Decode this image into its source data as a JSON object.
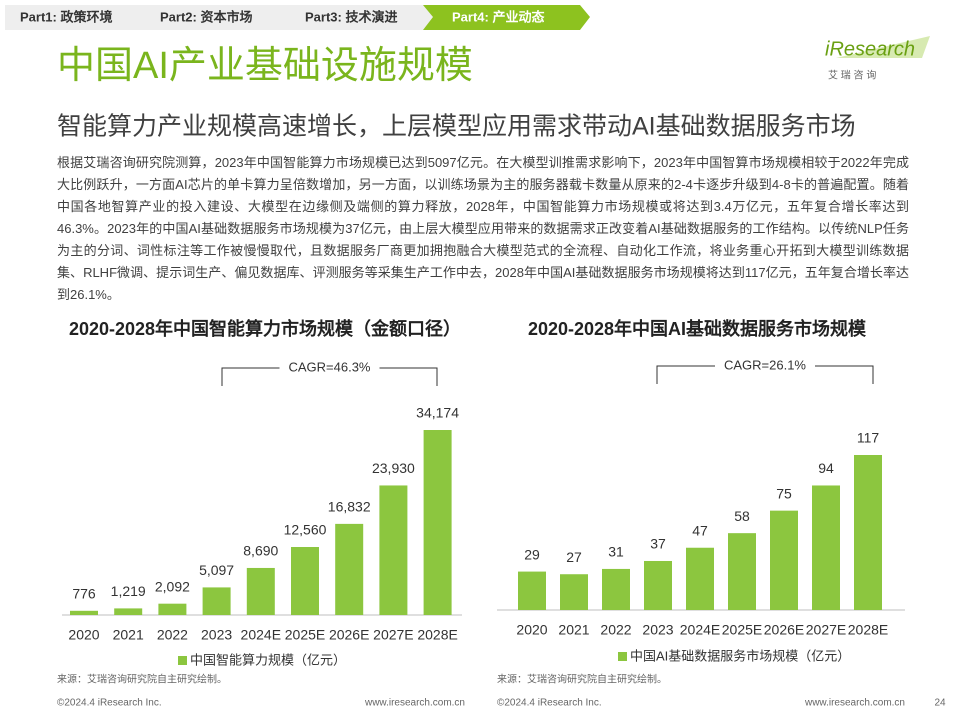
{
  "tabs": [
    "Part1: 政策环境",
    "Part2: 资本市场",
    "Part3: 技术演进",
    "Part4: 产业动态"
  ],
  "logo": {
    "name": "iResearch",
    "sub": "艾 瑞 咨 询"
  },
  "title": "中国AI产业基础设施规模",
  "subtitle": "智能算力产业规模高速增长，上层模型应用需求带动AI基础数据服务市场",
  "paragraph": "根据艾瑞咨询研究院测算，2023年中国智能算力市场规模已达到5097亿元。在大模型训推需求影响下，2023年中国智算市场规模相较于2022年完成大比例跃升，一方面AI芯片的单卡算力呈倍数增加，另一方面，以训练场景为主的服务器载卡数量从原来的2-4卡逐步升级到4-8卡的普遍配置。随着中国各地智算产业的投入建设、大模型在边缘侧及端侧的算力释放，2028年，中国智能算力市场规模或将达到3.4万亿元，五年复合增长率达到46.3%。2023年的中国AI基础数据服务市场规模为37亿元，由上层大模型应用带来的数据需求正改变着AI基础数据服务的工作结构。以传统NLP任务为主的分词、词性标注等工作被慢慢取代，且数据服务厂商更加拥抱融合大模型范式的全流程、自动化工作流，将业务重心开拓到大模型训练数据集、RLHF微调、提示词生产、偏见数据库、评测服务等采集生产工作中去，2028年中国AI基础数据服务市场规模将达到117亿元，五年复合增长率达到26.1%。",
  "page_number": 24,
  "chart_data": [
    {
      "type": "bar",
      "title": "2020-2028年中国智能算力市场规模（金额口径）",
      "categories": [
        "2020",
        "2021",
        "2022",
        "2023",
        "2024E",
        "2025E",
        "2026E",
        "2027E",
        "2028E"
      ],
      "series": [
        {
          "name": "中国智能算力规模（亿元）",
          "color": "#8cc63f",
          "values": [
            776,
            1219,
            2092,
            5097,
            8690,
            12560,
            16832,
            23930,
            34174
          ],
          "value_labels": [
            "776",
            "1,219",
            "2,092",
            "5,097",
            "8,690",
            "12,560",
            "16,832",
            "23,930",
            "34,174"
          ]
        }
      ],
      "annotation": "CAGR=46.3%",
      "source": "来源：艾瑞咨询研究院自主研究绘制。",
      "footer_left": "©2024.4 iResearch Inc.",
      "footer_right": "www.iresearch.com.cn"
    },
    {
      "type": "bar",
      "title": "2020-2028年中国AI基础数据服务市场规模",
      "categories": [
        "2020",
        "2021",
        "2022",
        "2023",
        "2024E",
        "2025E",
        "2026E",
        "2027E",
        "2028E"
      ],
      "series": [
        {
          "name": "中国AI基础数据服务市场规模（亿元）",
          "color": "#8cc63f",
          "values": [
            29,
            27,
            31,
            37,
            47,
            58,
            75,
            94,
            117
          ]
        }
      ],
      "annotation": "CAGR=26.1%",
      "source": "来源：艾瑞咨询研究院自主研究绘制。",
      "footer_left": "©2024.4 iResearch Inc.",
      "footer_right": "www.iresearch.com.cn"
    }
  ]
}
